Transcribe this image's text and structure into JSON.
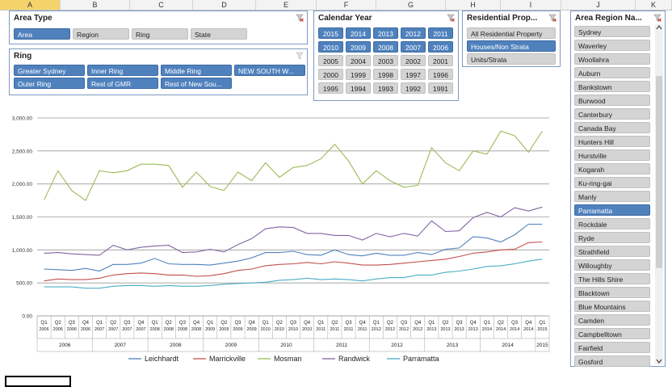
{
  "spreadsheet": {
    "columns": [
      "A",
      "B",
      "C",
      "D",
      "E",
      "F",
      "G",
      "H",
      "I",
      "J",
      "K"
    ],
    "active_column": "A"
  },
  "slicers": {
    "area_type": {
      "title": "Area Type",
      "items": [
        {
          "label": "Area",
          "selected": true
        },
        {
          "label": "Region",
          "selected": false
        },
        {
          "label": "Ring",
          "selected": false
        },
        {
          "label": "State",
          "selected": false
        }
      ]
    },
    "ring": {
      "title": "Ring",
      "items": [
        {
          "label": "Greater Sydney",
          "selected": true
        },
        {
          "label": "Inner Ring",
          "selected": true
        },
        {
          "label": "Middle Ring",
          "selected": true
        },
        {
          "label": "NEW SOUTH W...",
          "selected": true
        },
        {
          "label": "Outer Ring",
          "selected": true
        },
        {
          "label": "Rest of GMR",
          "selected": true
        },
        {
          "label": "Rest of New Sou...",
          "selected": true
        }
      ]
    },
    "calendar_year": {
      "title": "Calendar Year",
      "items": [
        {
          "label": "2015",
          "selected": true
        },
        {
          "label": "2014",
          "selected": true
        },
        {
          "label": "2013",
          "selected": true
        },
        {
          "label": "2012",
          "selected": true
        },
        {
          "label": "2011",
          "selected": true
        },
        {
          "label": "2010",
          "selected": true
        },
        {
          "label": "2009",
          "selected": true
        },
        {
          "label": "2008",
          "selected": true
        },
        {
          "label": "2007",
          "selected": true
        },
        {
          "label": "2006",
          "selected": true
        },
        {
          "label": "2005",
          "selected": false
        },
        {
          "label": "2004",
          "selected": false
        },
        {
          "label": "2003",
          "selected": false
        },
        {
          "label": "2002",
          "selected": false
        },
        {
          "label": "2001",
          "selected": false
        },
        {
          "label": "2000",
          "selected": false
        },
        {
          "label": "1999",
          "selected": false
        },
        {
          "label": "1998",
          "selected": false
        },
        {
          "label": "1997",
          "selected": false
        },
        {
          "label": "1996",
          "selected": false
        },
        {
          "label": "1995",
          "selected": false
        },
        {
          "label": "1994",
          "selected": false
        },
        {
          "label": "1993",
          "selected": false
        },
        {
          "label": "1992",
          "selected": false
        },
        {
          "label": "1991",
          "selected": false
        }
      ]
    },
    "residential_property": {
      "title": "Residential Prop...",
      "items": [
        {
          "label": "All Residential Property",
          "selected": false
        },
        {
          "label": "Houses/Non Strata",
          "selected": true
        },
        {
          "label": "Units/Strata",
          "selected": false
        }
      ]
    },
    "area_region": {
      "title": "Area Region Na...",
      "items": [
        {
          "label": "Sydney",
          "selected": false
        },
        {
          "label": "Waverley",
          "selected": false
        },
        {
          "label": "Woollahra",
          "selected": false
        },
        {
          "label": "Auburn",
          "selected": false
        },
        {
          "label": "Bankstown",
          "selected": false
        },
        {
          "label": "Burwood",
          "selected": false
        },
        {
          "label": "Canterbury",
          "selected": false
        },
        {
          "label": "Canada Bay",
          "selected": false
        },
        {
          "label": "Hunters Hill",
          "selected": false
        },
        {
          "label": "Hurstville",
          "selected": false
        },
        {
          "label": "Kogarah",
          "selected": false
        },
        {
          "label": "Ku-ring-gai",
          "selected": false
        },
        {
          "label": "Manly",
          "selected": false
        },
        {
          "label": "Parramatta",
          "selected": true
        },
        {
          "label": "Rockdale",
          "selected": false
        },
        {
          "label": "Ryde",
          "selected": false
        },
        {
          "label": "Strathfield",
          "selected": false
        },
        {
          "label": "Willoughby",
          "selected": false
        },
        {
          "label": "The Hills Shire",
          "selected": false
        },
        {
          "label": "Blacktown",
          "selected": false
        },
        {
          "label": "Blue Mountains",
          "selected": false
        },
        {
          "label": "Camden",
          "selected": false
        },
        {
          "label": "Campbelltown",
          "selected": false
        },
        {
          "label": "Fairfield",
          "selected": false
        },
        {
          "label": "Gosford",
          "selected": false
        }
      ]
    }
  },
  "colors": {
    "selected_button": "#4f81bd",
    "unselected_button": "#d4d4d4",
    "slicer_border": "#7d9ac0"
  },
  "chart_data": {
    "type": "line",
    "title": "",
    "xlabel": "",
    "ylabel": "",
    "ylim": [
      0,
      3000
    ],
    "y_ticks": [
      "0.00",
      "500.00",
      "1,000.00",
      "1,500.00",
      "2,000.00",
      "2,500.00",
      "3,000.00"
    ],
    "grid": true,
    "legend_position": "bottom",
    "quarters": [
      "Q1",
      "Q2",
      "Q3",
      "Q4",
      "Q1",
      "Q2",
      "Q3",
      "Q4",
      "Q1",
      "Q2",
      "Q3",
      "Q4",
      "Q1",
      "Q2",
      "Q3",
      "Q4",
      "Q1",
      "Q2",
      "Q3",
      "Q4",
      "Q1",
      "Q2",
      "Q3",
      "Q4",
      "Q1",
      "Q2",
      "Q3",
      "Q4",
      "Q1",
      "Q2",
      "Q3",
      "Q4",
      "Q1",
      "Q2",
      "Q3",
      "Q4",
      "Q1"
    ],
    "quarter_years": [
      "2006",
      "2006",
      "2006",
      "2006",
      "2007",
      "2007",
      "2007",
      "2007",
      "2008",
      "2008",
      "2008",
      "2008",
      "2009",
      "2009",
      "2009",
      "2009",
      "2010",
      "2010",
      "2010",
      "2010",
      "2011",
      "2011",
      "2011",
      "2011",
      "2012",
      "2012",
      "2012",
      "2012",
      "2013",
      "2013",
      "2013",
      "2013",
      "2014",
      "2014",
      "2014",
      "2014",
      "2015"
    ],
    "years": [
      {
        "label": "2006",
        "quarters": 4
      },
      {
        "label": "2007",
        "quarters": 4
      },
      {
        "label": "2008",
        "quarters": 4
      },
      {
        "label": "2009",
        "quarters": 4
      },
      {
        "label": "2010",
        "quarters": 4
      },
      {
        "label": "2011",
        "quarters": 4
      },
      {
        "label": "2012",
        "quarters": 4
      },
      {
        "label": "2013",
        "quarters": 4
      },
      {
        "label": "2014",
        "quarters": 4
      },
      {
        "label": "2015",
        "quarters": 1
      }
    ],
    "series": [
      {
        "name": "Leichhardt",
        "color": "#4f81bd",
        "values": [
          710,
          700,
          690,
          720,
          680,
          780,
          780,
          800,
          870,
          790,
          780,
          780,
          770,
          800,
          830,
          880,
          960,
          960,
          980,
          930,
          920,
          1000,
          930,
          910,
          950,
          920,
          920,
          960,
          930,
          1010,
          1030,
          1200,
          1180,
          1120,
          1230,
          1390,
          1390
        ]
      },
      {
        "name": "Marrickville",
        "color": "#c0504d",
        "values": [
          530,
          560,
          550,
          550,
          570,
          620,
          640,
          650,
          640,
          620,
          620,
          600,
          610,
          640,
          690,
          710,
          760,
          780,
          790,
          810,
          790,
          820,
          800,
          770,
          770,
          780,
          800,
          820,
          840,
          860,
          900,
          950,
          970,
          1000,
          1010,
          1110,
          1120
        ]
      },
      {
        "name": "Mosman",
        "color": "#9bbb59",
        "values": [
          1760,
          2200,
          1900,
          1750,
          2200,
          2170,
          2200,
          2300,
          2300,
          2280,
          1950,
          2180,
          1960,
          1900,
          2180,
          2050,
          2320,
          2100,
          2250,
          2280,
          2380,
          2600,
          2350,
          2000,
          2200,
          2050,
          1950,
          1980,
          2550,
          2320,
          2200,
          2500,
          2450,
          2800,
          2730,
          2480,
          2800
        ]
      },
      {
        "name": "Randwick",
        "color": "#8064a2",
        "values": [
          950,
          960,
          940,
          930,
          920,
          1070,
          1000,
          1040,
          1060,
          1070,
          960,
          970,
          1010,
          970,
          1080,
          1170,
          1320,
          1350,
          1340,
          1250,
          1250,
          1220,
          1220,
          1150,
          1250,
          1200,
          1250,
          1210,
          1440,
          1280,
          1290,
          1490,
          1570,
          1500,
          1640,
          1590,
          1650
        ]
      },
      {
        "name": "Parramatta",
        "color": "#4bacc6",
        "values": [
          440,
          440,
          440,
          420,
          420,
          450,
          460,
          460,
          450,
          460,
          450,
          450,
          460,
          480,
          490,
          500,
          510,
          540,
          550,
          570,
          550,
          560,
          550,
          530,
          560,
          580,
          580,
          620,
          620,
          660,
          680,
          710,
          750,
          760,
          790,
          830,
          860
        ]
      }
    ]
  }
}
